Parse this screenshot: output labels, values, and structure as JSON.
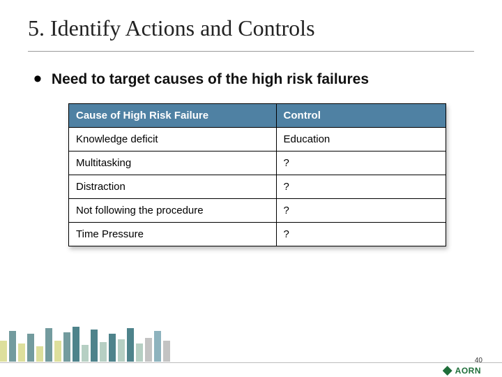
{
  "title": "5. Identify Actions and Controls",
  "bullet": "Need to target causes of the high risk failures",
  "table": {
    "header_bg": "#4f81a3",
    "columns": [
      "Cause of High Risk Failure",
      "Control"
    ],
    "rows": [
      [
        "Knowledge deficit",
        "Education"
      ],
      [
        "Multitasking",
        "?"
      ],
      [
        "Distraction",
        "?"
      ],
      [
        "Not following the procedure",
        "?"
      ],
      [
        "Time Pressure",
        "?"
      ]
    ]
  },
  "footer_bars": {
    "colors": [
      "#d7d98b",
      "#5b8a8d",
      "#d7d98b",
      "#5b8a8d",
      "#d7d98b",
      "#5b8a8d",
      "#d7d98b",
      "#5b8a8d",
      "#2f6d77",
      "#a9c7b8",
      "#2f6d77",
      "#a9c7b8",
      "#2f6d77",
      "#a9c7b8",
      "#2f6d77",
      "#a9c7b8",
      "#b8b8b8",
      "#7aa6b3",
      "#b8b8b8"
    ],
    "heights": [
      30,
      44,
      26,
      40,
      22,
      48,
      30,
      42,
      50,
      24,
      46,
      28,
      40,
      32,
      48,
      26,
      34,
      44,
      30
    ]
  },
  "logo_text": "AORN",
  "page_number": "40"
}
